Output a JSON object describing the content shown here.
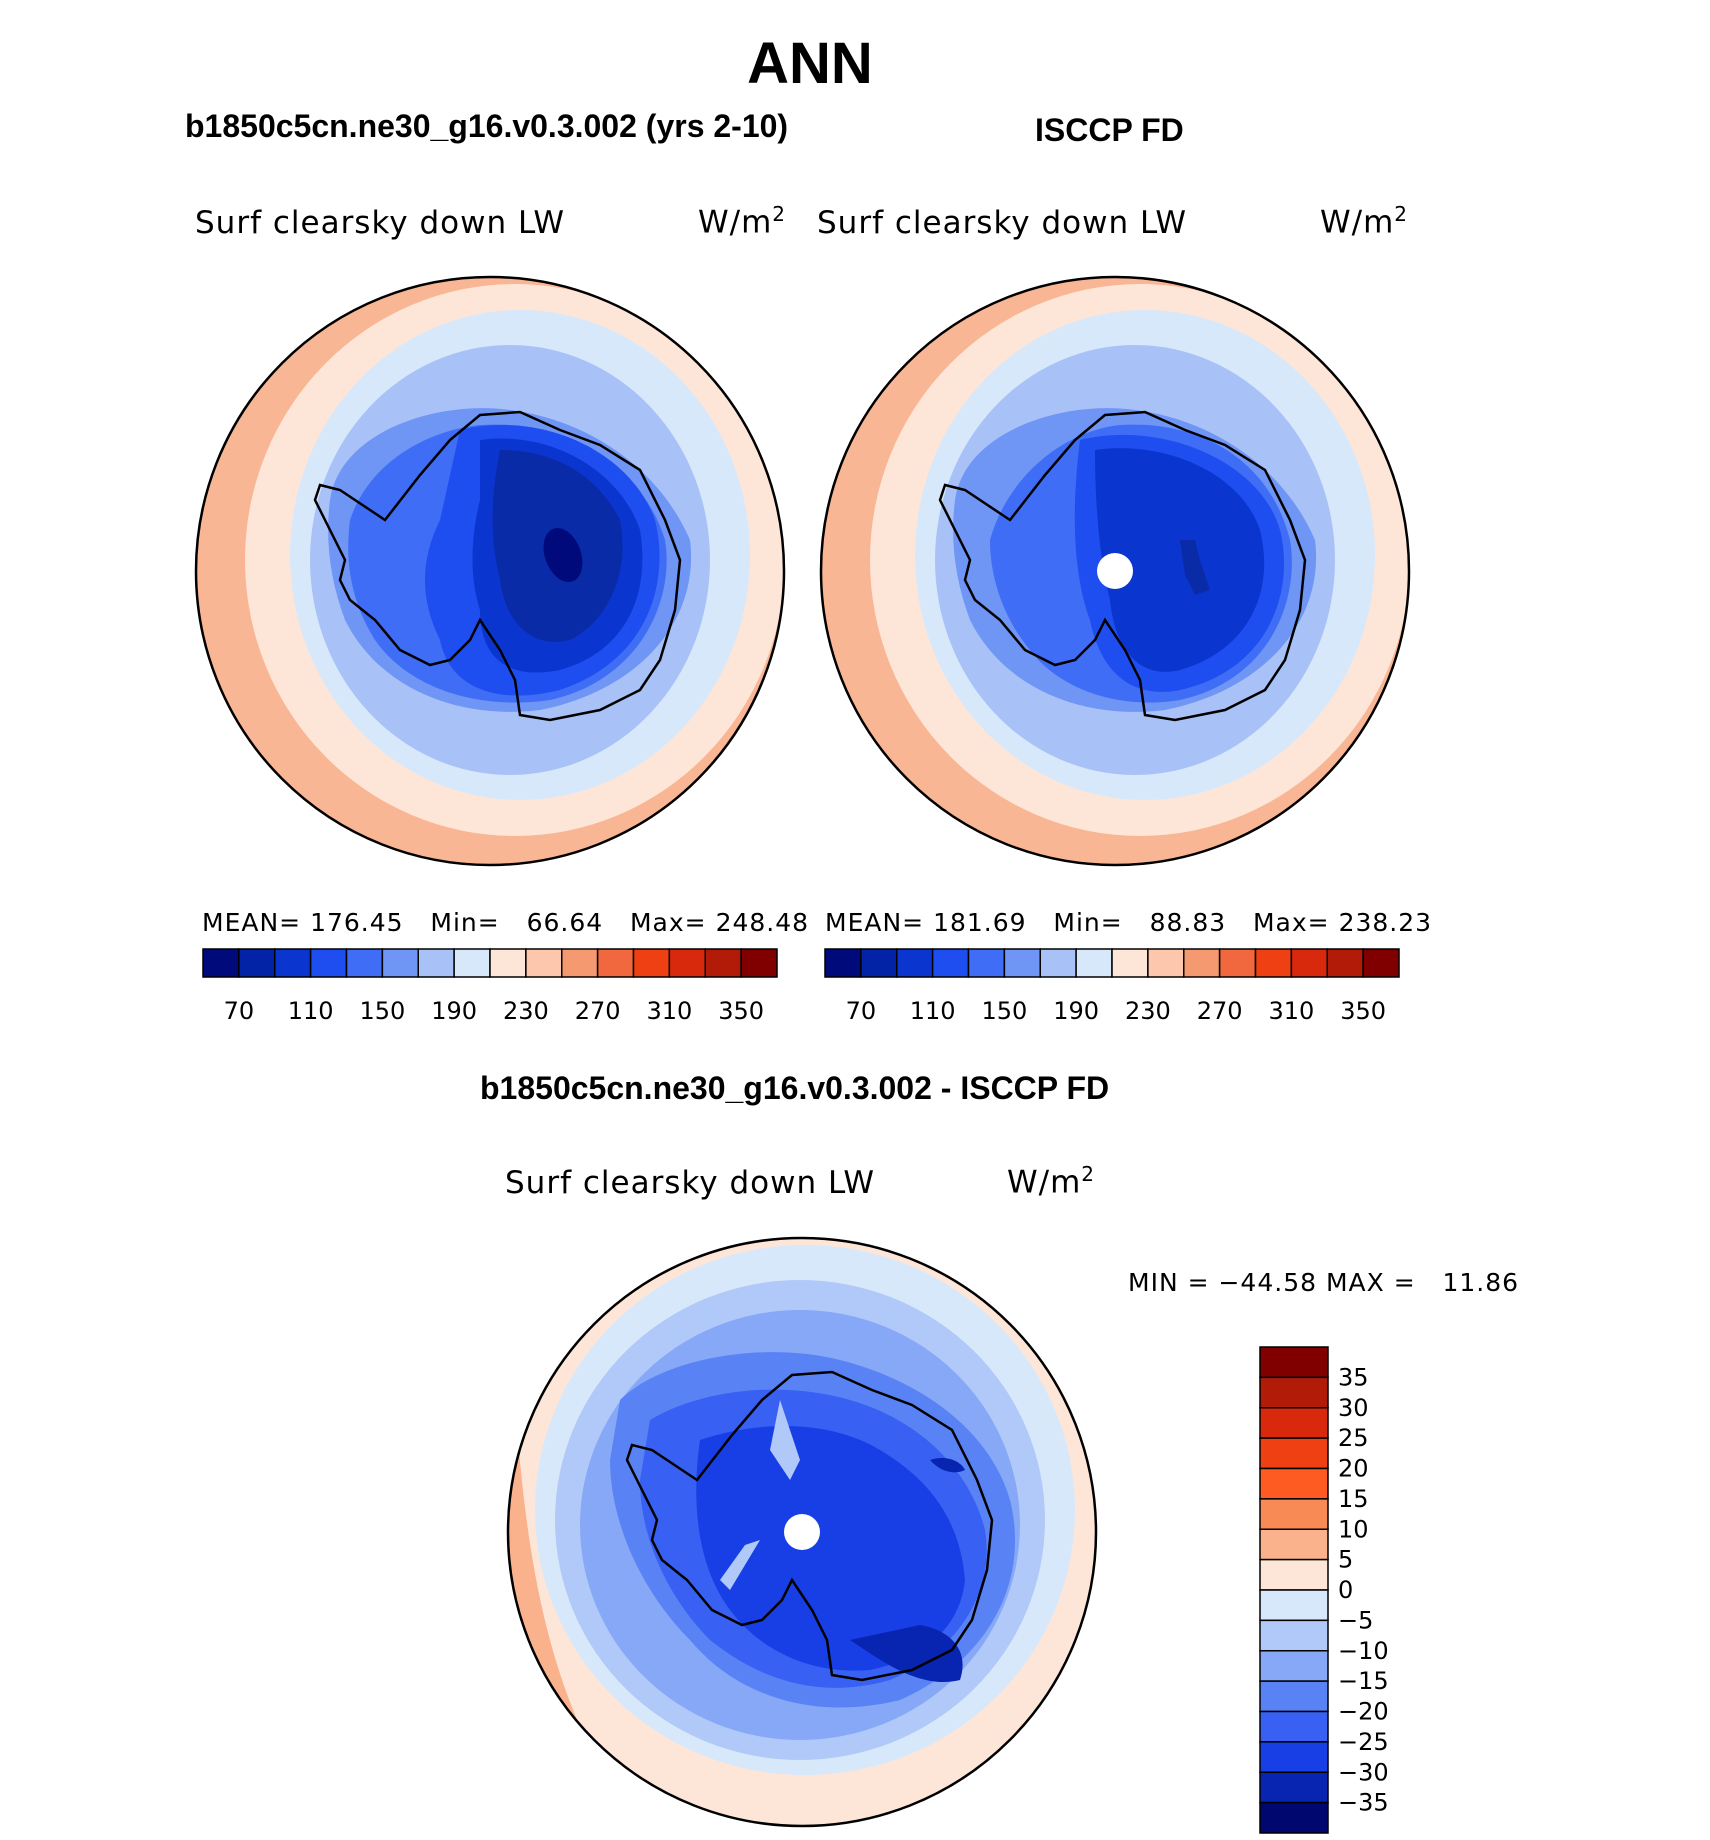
{
  "title": "ANN",
  "panels": [
    {
      "subtitle": "b1850c5cn.ne30_g16.v0.3.002 (yrs 2-10)",
      "variable": "Surf clearsky down LW",
      "units": "W/m",
      "units_sup": "2",
      "stats": {
        "mean_label": "MEAN=",
        "mean": "176.45",
        "min_label": "Min=",
        "min": "66.64",
        "max_label": "Max=",
        "max": "248.48"
      }
    },
    {
      "subtitle": "ISCCP FD",
      "variable": "Surf clearsky down LW",
      "units": "W/m",
      "units_sup": "2",
      "stats": {
        "mean_label": "MEAN=",
        "mean": "181.69",
        "min_label": "Min=",
        "min": "88.83",
        "max_label": "Max=",
        "max": "238.23"
      }
    }
  ],
  "abs_colorbar": {
    "colors": [
      "#000a7a",
      "#0323a6",
      "#0b35cf",
      "#1f4ef0",
      "#3f6df5",
      "#6f95f5",
      "#a8c2f8",
      "#d8e8fb",
      "#fde6d8",
      "#fcc7ad",
      "#f59a70",
      "#f2683e",
      "#ee4012",
      "#d8290d",
      "#b11b08",
      "#800000"
    ],
    "tick_labels": [
      "70",
      "110",
      "150",
      "190",
      "230",
      "270",
      "310",
      "350"
    ]
  },
  "diff_panel": {
    "subtitle": "b1850c5cn.ne30_g16.v0.3.002 - ISCCP FD",
    "variable": "Surf clearsky down LW",
    "units": "W/m",
    "units_sup": "2",
    "minmax": "MIN = −44.58 MAX =   11.86",
    "colorbar": {
      "colors": [
        "#800000",
        "#b11b08",
        "#d8290d",
        "#ee4012",
        "#fe5b22",
        "#f88a55",
        "#f9b28b",
        "#fde6d8",
        "#d8e8fb",
        "#b1c9f9",
        "#86a8f6",
        "#5983f5",
        "#3860f2",
        "#173fe5",
        "#0725b0",
        "#00076f"
      ],
      "tick_labels": [
        "35",
        "30",
        "25",
        "20",
        "15",
        "10",
        "5",
        "0",
        "−5",
        "−10",
        "−15",
        "−20",
        "−25",
        "−30",
        "−35"
      ]
    }
  },
  "legend": {
    "abs_levels": [
      "#fcc7ad",
      "#fde6d8",
      "#d8e8fb",
      "#a8c2f8",
      "#6f95f5",
      "#3f6df5",
      "#1f4ef0",
      "#0b35cf",
      "#000a7a"
    ],
    "diff_levels": [
      "#f9b28b",
      "#fde6d8",
      "#d8e8fb",
      "#b1c9f9",
      "#86a8f6",
      "#5983f5",
      "#3860f2",
      "#173fe5",
      "#0725b0"
    ]
  }
}
